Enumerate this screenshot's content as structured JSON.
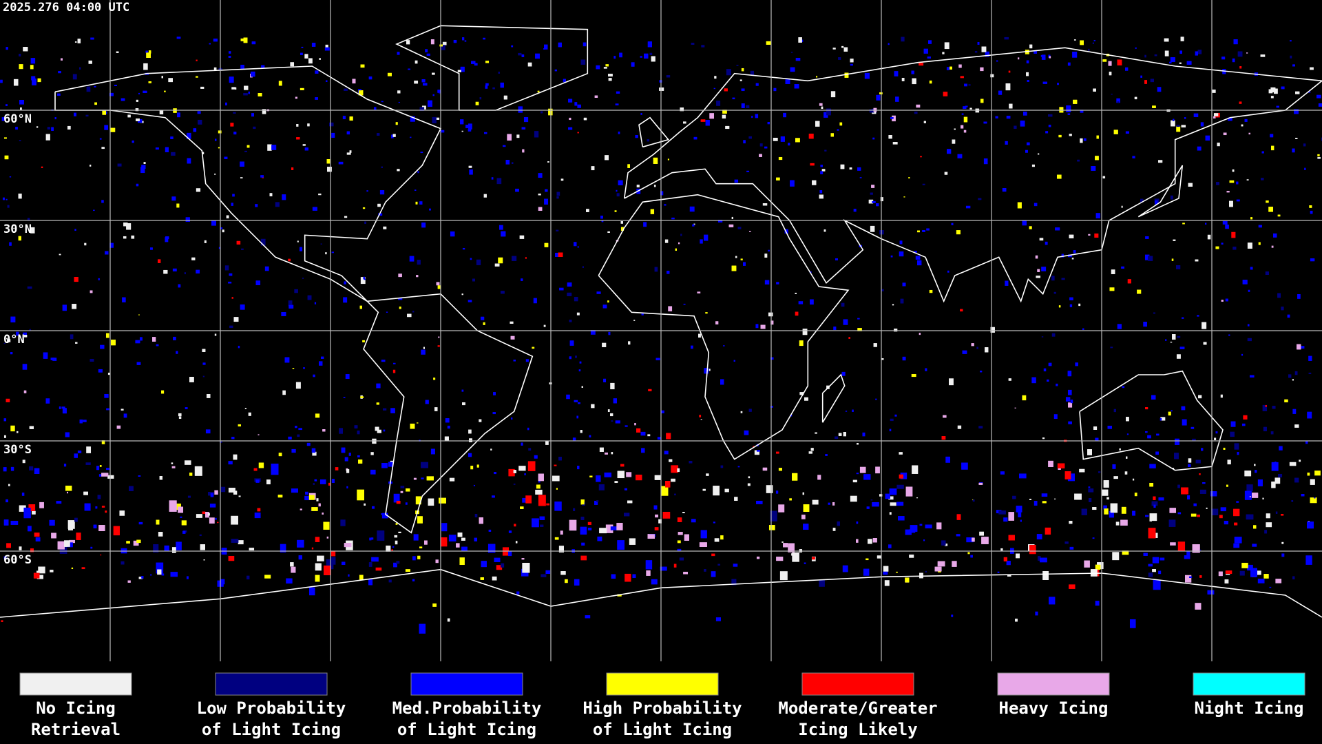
{
  "header": {
    "timestamp": "2025.276 04:00 UTC"
  },
  "map": {
    "lat_labels": [
      {
        "text": "60°N",
        "lat": 60
      },
      {
        "text": "30°N",
        "lat": 30
      },
      {
        "text": "0°N",
        "lat": 0
      },
      {
        "text": "30°S",
        "lat": -30
      },
      {
        "text": "60°S",
        "lat": -60
      }
    ]
  },
  "legend": {
    "items": [
      {
        "lines": [
          "No Icing",
          "Retrieval"
        ],
        "color": "#f0f0f0"
      },
      {
        "lines": [
          "Low Probability",
          "of Light Icing"
        ],
        "color": "#000080"
      },
      {
        "lines": [
          "Med.Probability",
          "of Light Icing"
        ],
        "color": "#0000ff"
      },
      {
        "lines": [
          "High Probability",
          "of Light Icing"
        ],
        "color": "#ffff00"
      },
      {
        "lines": [
          "Moderate/Greater",
          "Icing Likely"
        ],
        "color": "#ff0000"
      },
      {
        "lines": [
          "Heavy Icing"
        ],
        "color": "#e8a8e8"
      },
      {
        "lines": [
          "Night Icing"
        ],
        "color": "#00ffff"
      }
    ]
  }
}
